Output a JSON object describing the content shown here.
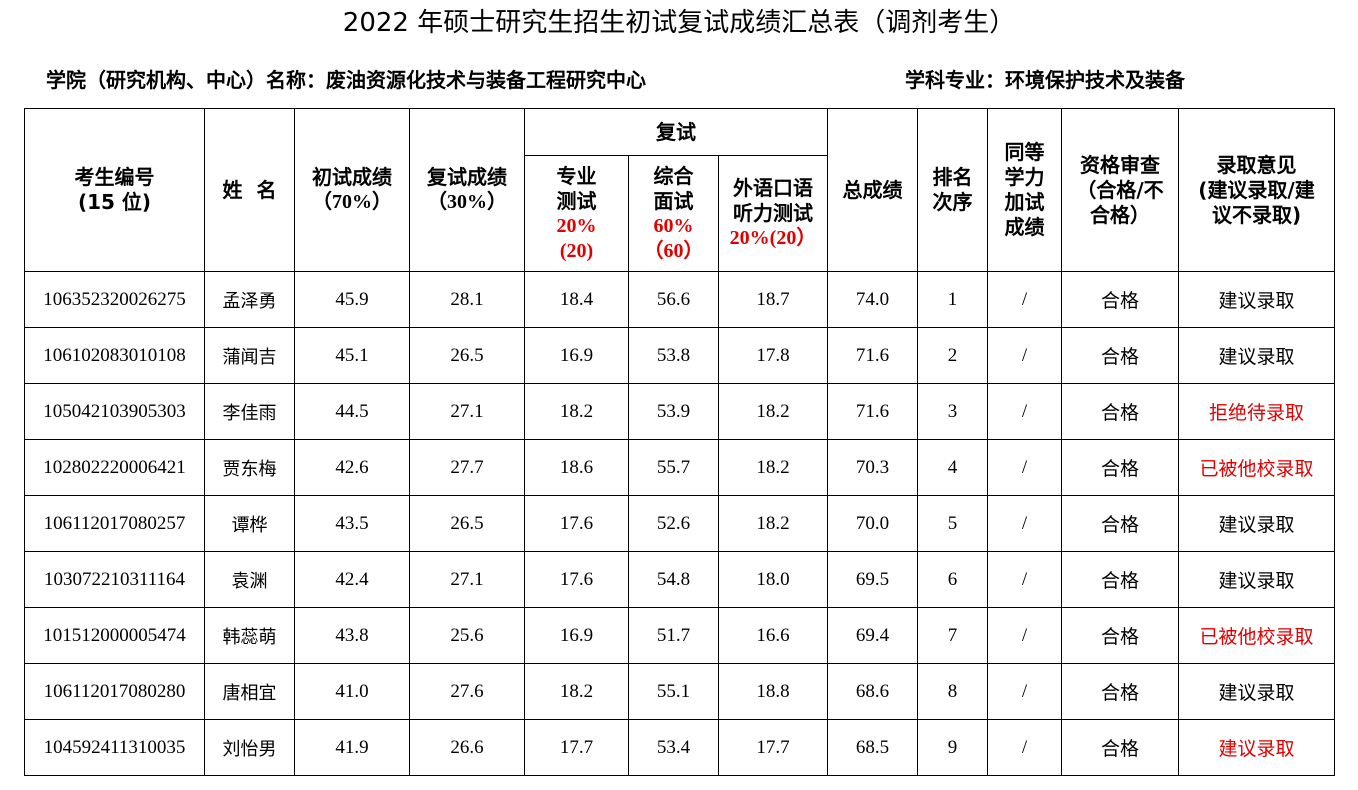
{
  "title": "2022 年硕士研究生招生初试复试成绩汇总表（调剂考生）",
  "college_label": "学院（研究机构、中心）名称：废油资源化技术与装备工程研究中心",
  "major_label": "学科专业：环境保护技术及装备",
  "headers": {
    "id_line1": "考生编号",
    "id_line2": "(15 位)",
    "name": "姓  名",
    "prelim_line1": "初试成绩",
    "prelim_line2": "（70%）",
    "retest_line1": "复试成绩",
    "retest_line2": "（30%）",
    "retest_group": "复试",
    "major_test_line1": "专业",
    "major_test_line2": "测试",
    "major_test_pct1": "20%",
    "major_test_pct2": "(20)",
    "interview_line1": "综合",
    "interview_line2": "面试",
    "interview_pct1": "60%",
    "interview_pct2": "（60）",
    "oral_line1": "外语口语",
    "oral_line2": "听力测试",
    "oral_pct": "20%(20）",
    "total": "总成绩",
    "rank_line1": "排名",
    "rank_line2": "次序",
    "bonus_line1": "同等",
    "bonus_line2": "学力",
    "bonus_line3": "加试",
    "bonus_line4": "成绩",
    "qual_line1": "资格审查",
    "qual_line2": "（合格/不",
    "qual_line3": "合格）",
    "opinion_line1": "录取意见",
    "opinion_line2": "(建议录取/建",
    "opinion_line3": "议不录取)"
  },
  "rows": [
    {
      "id": "106352320026275",
      "name": "孟泽勇",
      "prelim": "45.9",
      "retest": "28.1",
      "major": "18.4",
      "interview": "56.6",
      "oral": "18.7",
      "total": "74.0",
      "rank": "1",
      "bonus": "/",
      "qual": "合格",
      "opinion": "建议录取",
      "opinion_red": false
    },
    {
      "id": "106102083010108",
      "name": "蒲闻吉",
      "prelim": "45.1",
      "retest": "26.5",
      "major": "16.9",
      "interview": "53.8",
      "oral": "17.8",
      "total": "71.6",
      "rank": "2",
      "bonus": "/",
      "qual": "合格",
      "opinion": "建议录取",
      "opinion_red": false
    },
    {
      "id": "105042103905303",
      "name": "李佳雨",
      "prelim": "44.5",
      "retest": "27.1",
      "major": "18.2",
      "interview": "53.9",
      "oral": "18.2",
      "total": "71.6",
      "rank": "3",
      "bonus": "/",
      "qual": "合格",
      "opinion": "拒绝待录取",
      "opinion_red": true
    },
    {
      "id": "102802220006421",
      "name": "贾东梅",
      "prelim": "42.6",
      "retest": "27.7",
      "major": "18.6",
      "interview": "55.7",
      "oral": "18.2",
      "total": "70.3",
      "rank": "4",
      "bonus": "/",
      "qual": "合格",
      "opinion": "已被他校录取",
      "opinion_red": true
    },
    {
      "id": "106112017080257",
      "name": "谭桦",
      "prelim": "43.5",
      "retest": "26.5",
      "major": "17.6",
      "interview": "52.6",
      "oral": "18.2",
      "total": "70.0",
      "rank": "5",
      "bonus": "/",
      "qual": "合格",
      "opinion": "建议录取",
      "opinion_red": false
    },
    {
      "id": "103072210311164",
      "name": "袁渊",
      "prelim": "42.4",
      "retest": "27.1",
      "major": "17.6",
      "interview": "54.8",
      "oral": "18.0",
      "total": "69.5",
      "rank": "6",
      "bonus": "/",
      "qual": "合格",
      "opinion": "建议录取",
      "opinion_red": false
    },
    {
      "id": "101512000005474",
      "name": "韩蕊萌",
      "prelim": "43.8",
      "retest": "25.6",
      "major": "16.9",
      "interview": "51.7",
      "oral": "16.6",
      "total": "69.4",
      "rank": "7",
      "bonus": "/",
      "qual": "合格",
      "opinion": "已被他校录取",
      "opinion_red": true
    },
    {
      "id": "106112017080280",
      "name": "唐相宜",
      "prelim": "41.0",
      "retest": "27.6",
      "major": "18.2",
      "interview": "55.1",
      "oral": "18.8",
      "total": "68.6",
      "rank": "8",
      "bonus": "/",
      "qual": "合格",
      "opinion": "建议录取",
      "opinion_red": false
    },
    {
      "id": "104592411310035",
      "name": "刘怡男",
      "prelim": "41.9",
      "retest": "26.6",
      "major": "17.7",
      "interview": "53.4",
      "oral": "17.7",
      "total": "68.5",
      "rank": "9",
      "bonus": "/",
      "qual": "合格",
      "opinion": "建议录取",
      "opinion_red": true
    }
  ],
  "colors": {
    "text": "#000000",
    "highlight": "#e00000"
  }
}
